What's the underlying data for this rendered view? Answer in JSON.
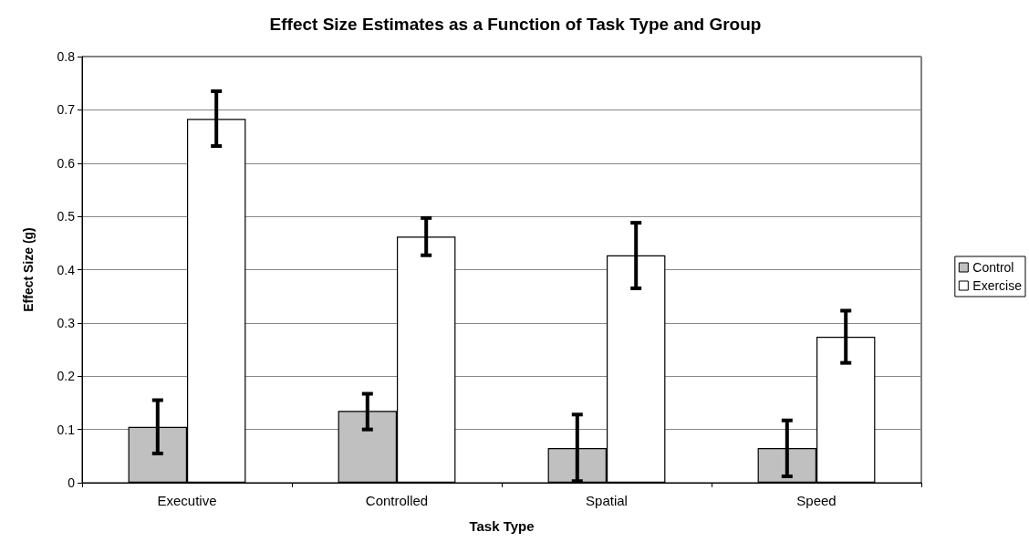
{
  "chart_data": {
    "type": "bar",
    "title": "Effect Size Estimates as a Function of Task Type and Group",
    "xlabel": "Task Type",
    "ylabel": "Effect Size (g)",
    "categories": [
      "Executive",
      "Controlled",
      "Spatial",
      "Speed"
    ],
    "series": [
      {
        "name": "Control",
        "color": "#c0c0c0",
        "values": [
          0.105,
          0.135,
          0.065,
          0.065
        ],
        "errors": [
          [
            0.055,
            0.155
          ],
          [
            0.1,
            0.167
          ],
          [
            0.003,
            0.128
          ],
          [
            0.012,
            0.117
          ]
        ]
      },
      {
        "name": "Exercise",
        "color": "#ffffff",
        "values": [
          0.683,
          0.462,
          0.427,
          0.274
        ],
        "errors": [
          [
            0.632,
            0.735
          ],
          [
            0.427,
            0.497
          ],
          [
            0.365,
            0.488
          ],
          [
            0.225,
            0.323
          ]
        ]
      }
    ],
    "ylim": [
      0,
      0.8
    ],
    "yticks": [
      0,
      0.1,
      0.2,
      0.3,
      0.4,
      0.5,
      0.6,
      0.7,
      0.8
    ],
    "grid": "y",
    "legend": "right"
  }
}
